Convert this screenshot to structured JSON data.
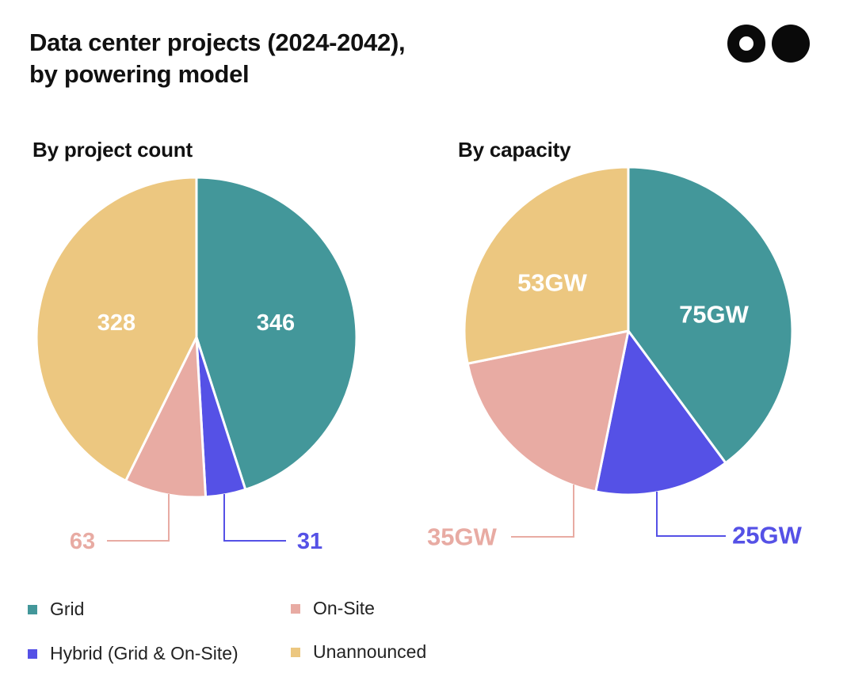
{
  "title_line1": "Data center projects (2024-2042),",
  "title_line2": "by powering model",
  "colors": {
    "grid": "#43979A",
    "hybrid": "#5551E6",
    "onsite": "#E8ABA3",
    "unannounced": "#ECC780"
  },
  "legend": [
    {
      "label": "Grid",
      "color": "#43979A"
    },
    {
      "label": "Hybrid (Grid & On-Site)",
      "color": "#5551E6"
    },
    {
      "label": "On-Site",
      "color": "#E8ABA3"
    },
    {
      "label": "Unannounced",
      "color": "#ECC780"
    }
  ],
  "chart_data": [
    {
      "type": "pie",
      "title": "By project count",
      "categories": [
        "Grid",
        "Hybrid (Grid & On-Site)",
        "On-Site",
        "Unannounced"
      ],
      "values": [
        346,
        31,
        63,
        328
      ],
      "labels": [
        "346",
        "31",
        "63",
        "328"
      ],
      "start": "12 o'clock",
      "direction": "clockwise"
    },
    {
      "type": "pie",
      "title": "By capacity",
      "categories": [
        "Grid",
        "Hybrid (Grid & On-Site)",
        "On-Site",
        "Unannounced"
      ],
      "values": [
        75,
        25,
        35,
        53
      ],
      "unit": "GW",
      "labels": [
        "75GW",
        "25GW",
        "35GW",
        "53GW"
      ],
      "start": "12 o'clock",
      "direction": "clockwise"
    }
  ]
}
